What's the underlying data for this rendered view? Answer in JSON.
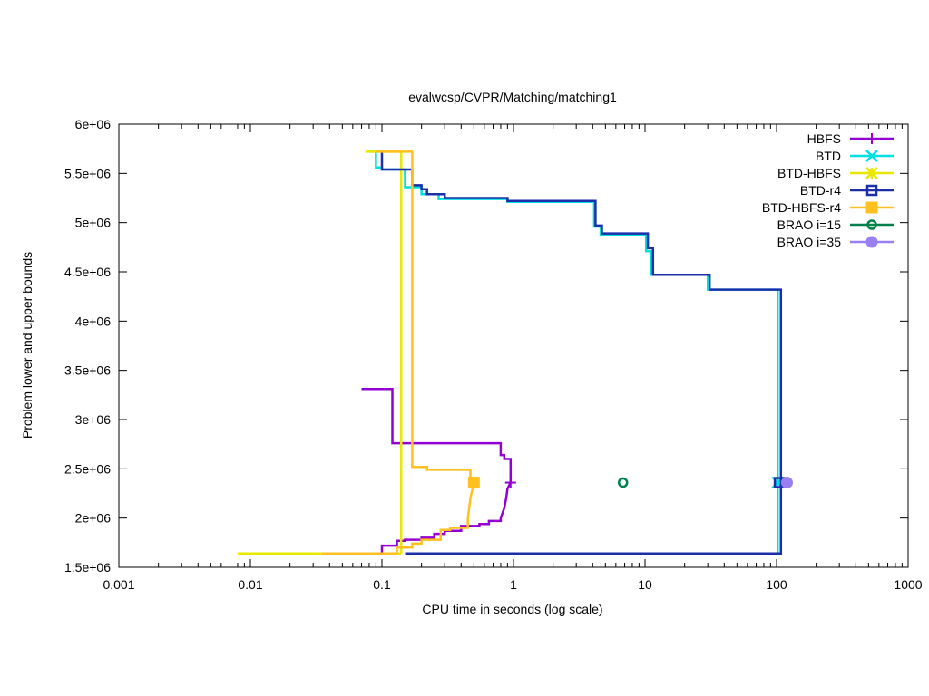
{
  "chart_data": {
    "type": "line",
    "title": "evalwcsp/CVPR/Matching/matching1",
    "xlabel": "CPU time in seconds (log scale)",
    "ylabel": "Problem lower and upper bounds",
    "xscale": "log",
    "xlim": [
      0.001,
      1000
    ],
    "ylim": [
      1500000,
      6000000
    ],
    "x_ticks": [
      0.001,
      0.01,
      0.1,
      1,
      10,
      100,
      1000
    ],
    "x_tick_labels": [
      "0.001",
      "0.01",
      "0.1",
      "1",
      "10",
      "100",
      "1000"
    ],
    "y_ticks": [
      1500000,
      2000000,
      2500000,
      3000000,
      3500000,
      4000000,
      4500000,
      5000000,
      5500000,
      6000000
    ],
    "y_tick_labels": [
      "1.5e+06",
      "2e+06",
      "2.5e+06",
      "3e+06",
      "3.5e+06",
      "4e+06",
      "4.5e+06",
      "5e+06",
      "5.5e+06",
      "6e+06"
    ],
    "grid": false,
    "legend_position": "top-right",
    "series": [
      {
        "name": "HBFS",
        "color": "#9400d3",
        "marker": "plus",
        "upper": [
          [
            0.07,
            3310000
          ],
          [
            0.12,
            3310000
          ],
          [
            0.12,
            2760000
          ],
          [
            0.8,
            2760000
          ],
          [
            0.8,
            2640000
          ],
          [
            0.85,
            2640000
          ],
          [
            0.85,
            2600000
          ],
          [
            0.95,
            2600000
          ],
          [
            0.95,
            2360000
          ]
        ],
        "lower": [
          [
            0.1,
            1640000
          ],
          [
            0.1,
            1720000
          ],
          [
            0.13,
            1720000
          ],
          [
            0.13,
            1770000
          ],
          [
            0.15,
            1770000
          ],
          [
            0.15,
            1780000
          ],
          [
            0.2,
            1780000
          ],
          [
            0.2,
            1800000
          ],
          [
            0.25,
            1800000
          ],
          [
            0.25,
            1840000
          ],
          [
            0.3,
            1840000
          ],
          [
            0.3,
            1870000
          ],
          [
            0.4,
            1870000
          ],
          [
            0.4,
            1920000
          ],
          [
            0.55,
            1920000
          ],
          [
            0.55,
            1940000
          ],
          [
            0.65,
            1940000
          ],
          [
            0.65,
            1970000
          ],
          [
            0.8,
            1970000
          ],
          [
            0.8,
            2000000
          ],
          [
            0.85,
            2100000
          ],
          [
            0.88,
            2200000
          ],
          [
            0.9,
            2300000
          ],
          [
            0.95,
            2360000
          ]
        ],
        "final": [
          [
            0.95,
            2360000
          ]
        ]
      },
      {
        "name": "BTD",
        "color": "#00e0e0",
        "marker": "x",
        "upper": [
          [
            0.08,
            5720000
          ],
          [
            0.09,
            5720000
          ],
          [
            0.09,
            5560000
          ],
          [
            0.1,
            5560000
          ],
          [
            0.1,
            5540000
          ],
          [
            0.15,
            5540000
          ],
          [
            0.15,
            5360000
          ],
          [
            0.2,
            5360000
          ],
          [
            0.2,
            5290000
          ],
          [
            0.27,
            5290000
          ],
          [
            0.27,
            5240000
          ],
          [
            0.9,
            5240000
          ],
          [
            0.9,
            5210000
          ],
          [
            4.1,
            5210000
          ],
          [
            4.1,
            4960000
          ],
          [
            4.6,
            4960000
          ],
          [
            4.6,
            4880000
          ],
          [
            10.2,
            4880000
          ],
          [
            10.2,
            4710000
          ],
          [
            11.2,
            4710000
          ],
          [
            11.2,
            4470000
          ],
          [
            30,
            4470000
          ],
          [
            30,
            4320000
          ],
          [
            102,
            4320000
          ],
          [
            102,
            2360000
          ]
        ],
        "lower": [
          [
            0.15,
            1640000
          ],
          [
            102,
            1640000
          ],
          [
            102,
            2360000
          ]
        ],
        "final": [
          [
            102,
            2360000
          ]
        ]
      },
      {
        "name": "BTD-HBFS",
        "color": "#e8e800",
        "marker": "star",
        "upper": [
          [
            0.075,
            5720000
          ],
          [
            0.14,
            5720000
          ],
          [
            0.14,
            1640000
          ]
        ],
        "lower": [
          [
            0.008,
            1640000
          ],
          [
            0.14,
            1640000
          ]
        ],
        "final": []
      },
      {
        "name": "BTD-r4",
        "color": "#1c2fa8",
        "marker": "open-square",
        "upper": [
          [
            0.1,
            5720000
          ],
          [
            0.1,
            5540000
          ],
          [
            0.17,
            5540000
          ],
          [
            0.17,
            5380000
          ],
          [
            0.2,
            5380000
          ],
          [
            0.2,
            5340000
          ],
          [
            0.22,
            5340000
          ],
          [
            0.22,
            5290000
          ],
          [
            0.3,
            5290000
          ],
          [
            0.3,
            5250000
          ],
          [
            0.9,
            5250000
          ],
          [
            0.9,
            5220000
          ],
          [
            4.2,
            5220000
          ],
          [
            4.2,
            4970000
          ],
          [
            4.7,
            4970000
          ],
          [
            4.7,
            4890000
          ],
          [
            10.5,
            4890000
          ],
          [
            10.5,
            4740000
          ],
          [
            11.5,
            4740000
          ],
          [
            11.5,
            4470000
          ],
          [
            31,
            4470000
          ],
          [
            31,
            4320000
          ],
          [
            108,
            4320000
          ],
          [
            108,
            2360000
          ]
        ],
        "lower": [
          [
            0.15,
            1640000
          ],
          [
            108,
            1640000
          ],
          [
            108,
            2360000
          ]
        ],
        "final": [
          [
            105,
            2360000
          ]
        ]
      },
      {
        "name": "BTD-HBFS-r4",
        "color": "#ffc020",
        "marker": "filled-square",
        "upper": [
          [
            0.09,
            5720000
          ],
          [
            0.17,
            5720000
          ],
          [
            0.17,
            2520000
          ],
          [
            0.22,
            2520000
          ],
          [
            0.22,
            2490000
          ],
          [
            0.47,
            2490000
          ],
          [
            0.47,
            2360000
          ]
        ],
        "lower": [
          [
            0.035,
            1640000
          ],
          [
            0.13,
            1640000
          ],
          [
            0.13,
            1700000
          ],
          [
            0.17,
            1700000
          ],
          [
            0.17,
            1740000
          ],
          [
            0.2,
            1740000
          ],
          [
            0.2,
            1780000
          ],
          [
            0.28,
            1780000
          ],
          [
            0.28,
            1880000
          ],
          [
            0.33,
            1880000
          ],
          [
            0.33,
            1900000
          ],
          [
            0.45,
            1900000
          ],
          [
            0.45,
            2000000
          ],
          [
            0.47,
            2200000
          ],
          [
            0.5,
            2360000
          ]
        ],
        "final": [
          [
            0.5,
            2360000
          ]
        ]
      },
      {
        "name": "BRAO i=15",
        "color": "#00804a",
        "marker": "open-circle",
        "upper": [],
        "lower": [],
        "final": [
          [
            6.8,
            2360000
          ]
        ]
      },
      {
        "name": "BRAO i=35",
        "color": "#9a7ff0",
        "marker": "filled-circle",
        "upper": [],
        "lower": [],
        "final": [
          [
            120,
            2360000
          ]
        ]
      }
    ]
  }
}
